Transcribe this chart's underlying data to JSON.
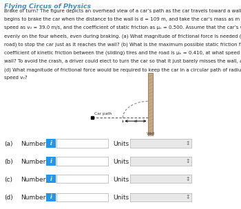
{
  "title": "Flying Circus of Physics",
  "title_color": "#3a8fc4",
  "body_lines": [
    "Brake or turn? The figure depicts an overhead view of a car’s path as the car travels toward a wall. Assume that the driver",
    "begins to brake the car when the distance to the wall is d = 109 m, and take the car’s mass as m = 1430 kg, its initial",
    "speed as v₀ = 39.0 m/s, and the coefficient of static friction as μₛ = 0.500. Assume that the car’s weight is distributed",
    "evenly on the four wheels, even during braking. (a) What magnitude of frictional force is needed (between tires and",
    "road) to stop the car just as it reaches the wall? (b) What is the maximum possible static friction fₛ, max? (c) If the",
    "coefficient of kinetic friction between the (sliding) tires and the road is μₖ = 0.410, at what speed will the car hit the",
    "wall? To avoid the crash, a driver could elect to turn the car so that it just barely misses the wall, as shown in the figure.",
    "(d) What magnitude of frictional force would be required to keep the car in a circular path of radius d and at the given",
    "speed v₀?"
  ],
  "labels": [
    "(a)",
    "(b)",
    "(c)",
    "(d)"
  ],
  "number_label": "Number",
  "units_label": "Units",
  "info_button_color": "#2196F3",
  "wall_color": "#c8a882",
  "wall_edge_color": "#a08060",
  "background_color": "#ffffff",
  "box_color": "#ffffff",
  "box_edge_color": "#bbbbbb",
  "units_box_color": "#e8e8e8",
  "car_path_label": "Car path",
  "wall_text": "Wall",
  "d_label": "d"
}
